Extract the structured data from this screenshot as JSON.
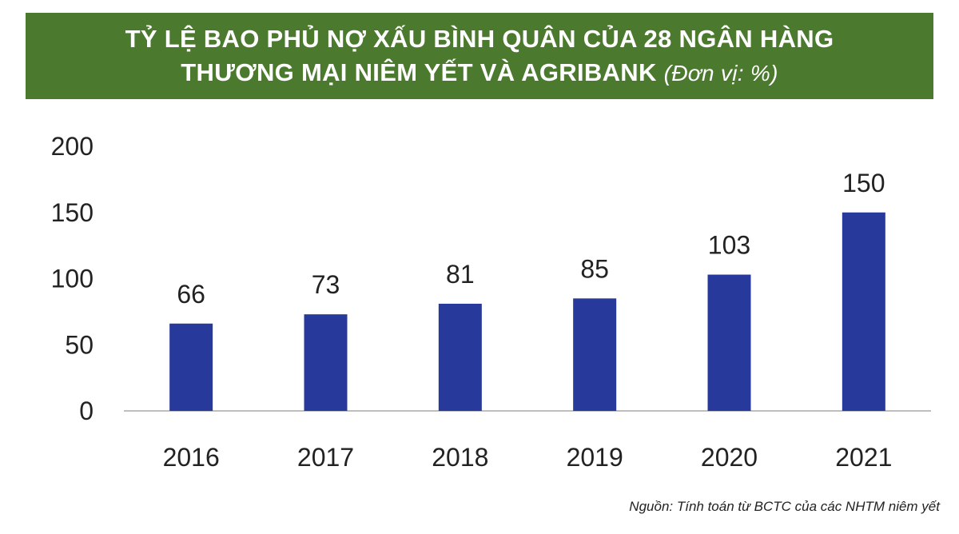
{
  "title": {
    "line1": "TỶ LỆ BAO PHỦ NỢ XẤU BÌNH QUÂN CỦA 28 NGÂN HÀNG",
    "line2": "THƯƠNG MẠI NIÊM YẾT VÀ AGRIBANK",
    "unit": "(Đơn vị: %)"
  },
  "source": "Nguồn: Tính toán từ BCTC của các NHTM niêm yết",
  "colors": {
    "title_background": "#4b7a2f",
    "bar": "#27399a",
    "axis_line": "#bfbfbf",
    "text": "#222222"
  },
  "chart_data": {
    "type": "bar",
    "categories": [
      "2016",
      "2017",
      "2018",
      "2019",
      "2020",
      "2021"
    ],
    "values": [
      66,
      73,
      81,
      85,
      103,
      150
    ],
    "data_labels": [
      "66",
      "73",
      "81",
      "85",
      "103",
      "150"
    ],
    "ylim": [
      0,
      200
    ],
    "yticks": [
      0,
      50,
      100,
      150,
      200
    ],
    "ytick_labels": [
      "0",
      "50",
      "100",
      "150",
      "200"
    ],
    "grid": false,
    "legend": "none",
    "xlabel": "",
    "ylabel": ""
  }
}
